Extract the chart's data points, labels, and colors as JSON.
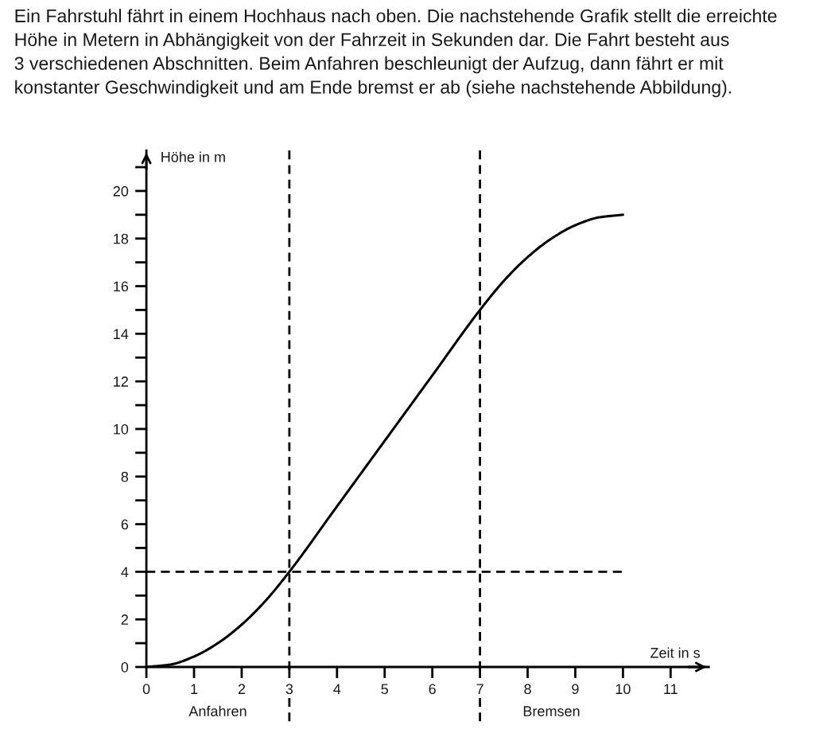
{
  "chart_data": {
    "type": "line",
    "title": "Ein Fahrstuhl fährt in einem Hochhaus nach oben. Die nachstehende Grafik stellt die erreichte\nHöhe in Metern in Abhängigkeit von der Fahrzeit in Sekunden dar. Die Fahrt besteht aus\n3 verschiedenen Abschnitten. Beim Anfahren beschleunigt der Aufzug, dann fährt er mit\nkonstanter Geschwindigkeit und am Ende bremst er ab (siehe nachstehende Abbildung).",
    "xlabel": "Zeit in s",
    "ylabel": "Höhe in m",
    "x": [
      0,
      0.5,
      1,
      1.5,
      2,
      2.5,
      3,
      4,
      5,
      6,
      7,
      7.5,
      8,
      8.5,
      9,
      9.5,
      10
    ],
    "series": [
      {
        "color": "#000000",
        "values": [
          0,
          0.1,
          0.44,
          1.0,
          1.78,
          2.78,
          4,
          6.75,
          9.5,
          12.25,
          15,
          16.22,
          17.22,
          18.0,
          18.56,
          18.89,
          19
        ]
      }
    ],
    "xlim": [
      0,
      11.8
    ],
    "ylim": [
      0,
      21.7
    ],
    "xticks": [
      0,
      1,
      2,
      3,
      4,
      5,
      6,
      7,
      8,
      9,
      10,
      11
    ],
    "yticks": [
      0,
      {
        "value": 1,
        "label": null
      },
      2,
      {
        "value": 3,
        "label": null
      },
      4,
      {
        "value": 5,
        "label": null
      },
      6,
      {
        "value": 7,
        "label": null
      },
      8,
      {
        "value": 9,
        "label": null
      },
      10,
      {
        "value": 11,
        "label": null
      },
      12,
      {
        "value": 13,
        "label": null
      },
      14,
      {
        "value": 15,
        "label": null
      },
      16,
      {
        "value": 17,
        "label": null
      },
      18,
      {
        "value": 19,
        "label": null
      },
      20,
      {
        "value": 21,
        "label": null
      }
    ],
    "ref_lines": [
      {
        "axis": "x",
        "value": 3,
        "color": "#000000",
        "line_style": "dashed"
      },
      {
        "axis": "x",
        "value": 7,
        "color": "#000000",
        "line_style": "dashed"
      },
      {
        "axis": "y",
        "value": 4,
        "color": "#000000",
        "line_style": "dashed"
      }
    ],
    "annotations": [
      "Anfahren",
      "Bremsen"
    ],
    "grid": false,
    "legend": false,
    "marker": "none",
    "line_style": "solid"
  }
}
